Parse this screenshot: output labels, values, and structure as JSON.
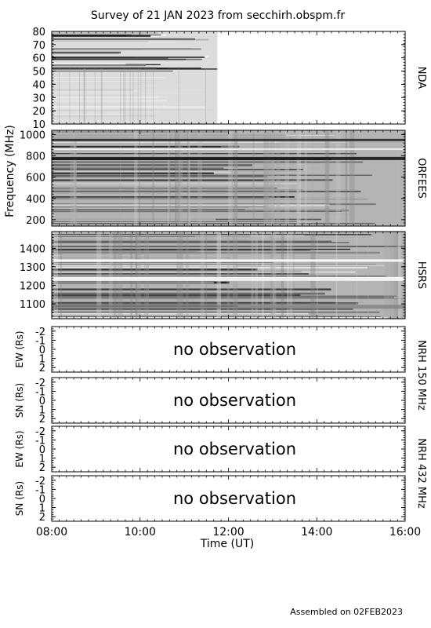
{
  "title": "Survey of 21 JAN 2023 from secchirh.obspm.fr",
  "footer": "Assembled on 02FEB2023",
  "colors": {
    "ink": "#000000",
    "no_obs": "#a8a8a8",
    "spectrum_bg": "#b4b4b4"
  },
  "chart_data": [
    {
      "type": "heatmap",
      "name": "NDA",
      "ylabel": "",
      "ylim": [
        80,
        10
      ],
      "yticks": [
        10,
        20,
        30,
        40,
        50,
        60,
        70,
        80
      ],
      "ytick_labels": [
        "10",
        "20",
        "30",
        "40",
        "50",
        "60",
        "70",
        "80"
      ],
      "data_x_range": [
        "08:00",
        "11:45"
      ]
    },
    {
      "type": "heatmap",
      "name": "ORFEES",
      "ylabel": "Frequency (MHz)",
      "ylim": [
        1040,
        140
      ],
      "yticks": [
        200,
        400,
        600,
        800,
        1000
      ],
      "ytick_labels": [
        "200",
        "400",
        "600",
        "800",
        "1000"
      ],
      "data_x_range": [
        "08:00",
        "16:00"
      ]
    },
    {
      "type": "heatmap",
      "name": "HSRS",
      "ylabel": "",
      "ylim": [
        1490,
        1020
      ],
      "yticks": [
        1100,
        1200,
        1300,
        1400
      ],
      "ytick_labels": [
        "1100",
        "1200",
        "1300",
        "1400"
      ],
      "data_x_range": [
        "08:00",
        "16:00"
      ]
    },
    {
      "type": "line",
      "name": "NRH 150 MHz EW",
      "ylabel": "EW (Rs)",
      "ylim": [
        -2.5,
        2.5
      ],
      "yticks": [
        -2,
        -1,
        0,
        1,
        2
      ],
      "ytick_labels": [
        "-2",
        "-1",
        "0",
        "1",
        "2"
      ],
      "message": "no observation"
    },
    {
      "type": "line",
      "name": "NRH 150 MHz SN",
      "ylabel": "SN (Rs)",
      "ylim": [
        -2.5,
        2.5
      ],
      "yticks": [
        -2,
        -1,
        0,
        1,
        2
      ],
      "ytick_labels": [
        "-2",
        "-1",
        "0",
        "1",
        "2"
      ],
      "message": "no observation"
    },
    {
      "type": "line",
      "name": "NRH 432 MHz EW",
      "ylabel": "EW (Rs)",
      "ylim": [
        -2.5,
        2.5
      ],
      "yticks": [
        -2,
        -1,
        0,
        1,
        2
      ],
      "ytick_labels": [
        "-2",
        "-1",
        "0",
        "1",
        "2"
      ],
      "message": "no observation"
    },
    {
      "type": "line",
      "name": "NRH 432 MHz SN",
      "ylabel": "SN (Rs)",
      "ylim": [
        -2.5,
        2.5
      ],
      "yticks": [
        -2,
        -1,
        0,
        1,
        2
      ],
      "ytick_labels": [
        "-2",
        "-1",
        "0",
        "1",
        "2"
      ],
      "message": "no observation"
    }
  ],
  "side_labels": {
    "nda": "NDA",
    "orfees": "ORFEES",
    "hsrs": "HSRS",
    "nrh150": "NRH 150 MHz",
    "nrh432": "NRH 432 MHz"
  },
  "x_axis": {
    "label": "Time (UT)",
    "range_hours": [
      8,
      16
    ],
    "ticks": [
      "08:00",
      "10:00",
      "12:00",
      "14:00",
      "16:00"
    ]
  }
}
